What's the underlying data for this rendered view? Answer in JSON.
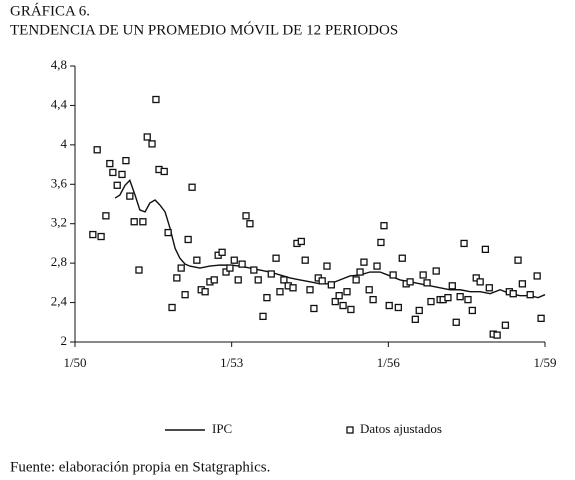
{
  "chart_data": {
    "type": "line",
    "title": "GRÁFICA 6.",
    "subtitle": "TENDENCIA DE UN PROMEDIO MÓVIL DE 12 PERIODOS",
    "source": "Fuente: elaboración propia en Statgraphics.",
    "xlim": [
      0,
      108
    ],
    "xticks": [
      {
        "value": 0,
        "label": "1/50"
      },
      {
        "value": 36,
        "label": "1/53"
      },
      {
        "value": 72,
        "label": "1/56"
      },
      {
        "value": 108,
        "label": "1/59"
      }
    ],
    "ylim": [
      2,
      4.8
    ],
    "yticks": [
      2,
      {
        "value": 2.4,
        "label": "2,4"
      },
      {
        "value": 2.8,
        "label": "2,8"
      },
      {
        "value": 3.2,
        "label": "3,2"
      },
      {
        "value": 3.6,
        "label": "3,6"
      },
      4,
      {
        "value": 4.4,
        "label": "4,4"
      },
      {
        "value": 4.8,
        "label": "4,8"
      }
    ],
    "legend": "bottom",
    "series": [
      {
        "name": "IPC",
        "type": "line",
        "color": "#111111",
        "x": [
          9.2,
          10.3,
          11.5,
          12.6,
          13.8,
          14.9,
          16.1,
          17.2,
          18.4,
          19.5,
          20.7,
          21.8,
          23.0,
          24.1,
          25.3,
          26.4,
          28.7,
          31.0,
          33.3,
          35.6,
          37.9,
          40.2,
          42.5,
          44.8,
          47.1,
          49.4,
          51.7,
          54.0,
          56.3,
          58.6,
          60.9,
          63.2,
          65.5,
          67.8,
          70.1,
          72.4,
          74.7,
          77.0,
          79.3,
          81.6,
          83.9,
          86.2,
          88.5,
          90.8,
          93.1,
          95.4,
          97.7,
          100,
          102.3,
          104.6,
          106.4,
          108
        ],
        "values": [
          3.46,
          3.49,
          3.59,
          3.64,
          3.49,
          3.34,
          3.32,
          3.41,
          3.44,
          3.39,
          3.32,
          3.16,
          2.95,
          2.85,
          2.79,
          2.77,
          2.75,
          2.77,
          2.78,
          2.78,
          2.77,
          2.75,
          2.73,
          2.71,
          2.68,
          2.65,
          2.63,
          2.61,
          2.59,
          2.59,
          2.63,
          2.67,
          2.68,
          2.71,
          2.71,
          2.67,
          2.63,
          2.61,
          2.59,
          2.57,
          2.55,
          2.53,
          2.53,
          2.51,
          2.51,
          2.49,
          2.53,
          2.49,
          2.47,
          2.47,
          2.45,
          2.48
        ]
      },
      {
        "name": "Datos ajustados",
        "type": "scatter",
        "color": "#111111",
        "x": [
          4.1,
          5.1,
          6.0,
          7.1,
          8.0,
          8.7,
          9.7,
          10.8,
          11.7,
          12.6,
          13.6,
          14.7,
          15.6,
          16.6,
          17.7,
          18.6,
          19.3,
          20.5,
          21.4,
          22.3,
          23.4,
          24.4,
          25.3,
          26.0,
          26.9,
          28.0,
          29.0,
          29.9,
          31.0,
          32.0,
          32.9,
          33.8,
          34.7,
          35.6,
          36.6,
          37.5,
          38.4,
          39.3,
          40.2,
          41.1,
          42.1,
          43.2,
          44.1,
          45.1,
          46.2,
          47.1,
          48.0,
          49.0,
          50.1,
          51.0,
          52.0,
          52.9,
          54.0,
          54.9,
          55.9,
          56.8,
          57.9,
          58.9,
          59.8,
          60.7,
          61.6,
          62.5,
          63.4,
          64.6,
          65.5,
          66.4,
          67.6,
          68.5,
          69.4,
          70.3,
          71.0,
          72.2,
          73.1,
          74.3,
          75.2,
          76.1,
          77.0,
          78.2,
          79.1,
          80.0,
          80.9,
          81.8,
          83.0,
          83.9,
          84.6,
          85.7,
          86.7,
          87.6,
          88.5,
          89.4,
          90.3,
          91.3,
          92.2,
          93.1,
          94.3,
          95.2,
          96.1,
          97.0,
          98.9,
          99.8,
          100.7,
          101.8,
          102.8,
          104.6,
          106.2,
          107.1
        ],
        "values": [
          3.09,
          3.95,
          3.07,
          3.28,
          3.81,
          3.72,
          3.59,
          3.7,
          3.84,
          3.48,
          3.22,
          2.73,
          3.22,
          4.08,
          4.01,
          4.46,
          3.75,
          3.73,
          3.11,
          2.35,
          2.65,
          2.75,
          2.48,
          3.04,
          3.57,
          2.83,
          2.53,
          2.51,
          2.61,
          2.63,
          2.88,
          2.91,
          2.71,
          2.75,
          2.83,
          2.63,
          2.79,
          3.28,
          3.2,
          2.73,
          2.63,
          2.26,
          2.45,
          2.69,
          2.85,
          2.51,
          2.63,
          2.57,
          2.55,
          3.0,
          3.02,
          2.83,
          2.53,
          2.34,
          2.65,
          2.62,
          2.77,
          2.58,
          2.41,
          2.47,
          2.37,
          2.51,
          2.33,
          2.63,
          2.71,
          2.81,
          2.53,
          2.43,
          2.77,
          3.01,
          3.18,
          2.37,
          2.68,
          2.35,
          2.85,
          2.59,
          2.61,
          2.23,
          2.32,
          2.68,
          2.6,
          2.41,
          2.72,
          2.43,
          2.43,
          2.45,
          2.57,
          2.2,
          2.46,
          3.0,
          2.43,
          2.32,
          2.65,
          2.61,
          2.94,
          2.55,
          2.08,
          2.07,
          2.17,
          2.51,
          2.49,
          2.83,
          2.59,
          2.48,
          2.67,
          2.24
        ]
      }
    ]
  }
}
